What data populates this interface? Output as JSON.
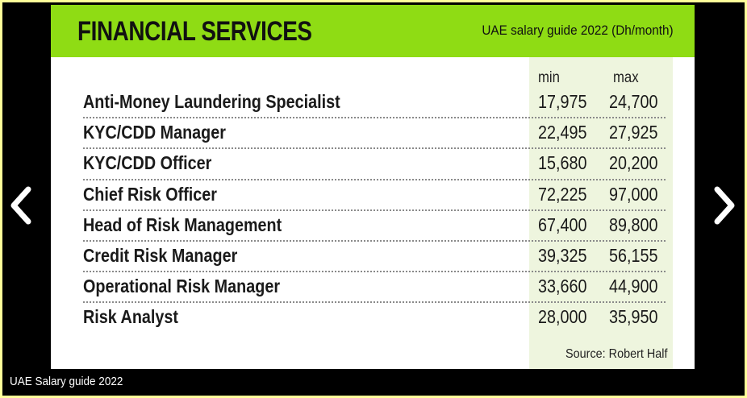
{
  "card": {
    "title": "FINANCIAL SERVICES",
    "subtitle": "UAE salary guide 2022 (Dh/month)",
    "columns": {
      "min": "min",
      "max": "max"
    },
    "rows": [
      {
        "job": "Anti-Money Laundering Specialist",
        "min": "17,975",
        "max": "24,700"
      },
      {
        "job": "KYC/CDD Manager",
        "min": "22,495",
        "max": "27,925"
      },
      {
        "job": "KYC/CDD Officer",
        "min": "15,680",
        "max": "20,200"
      },
      {
        "job": "Chief Risk Officer",
        "min": "72,225",
        "max": "97,000"
      },
      {
        "job": "Head of Risk Management",
        "min": "67,400",
        "max": "89,800"
      },
      {
        "job": "Credit Risk Manager",
        "min": "39,325",
        "max": "56,155"
      },
      {
        "job": "Operational Risk Manager",
        "min": "33,660",
        "max": "44,900"
      },
      {
        "job": "Risk Analyst",
        "min": "28,000",
        "max": "35,950"
      }
    ],
    "source": "Source: Robert Half"
  },
  "viewer": {
    "caption": "UAE Salary guide 2022",
    "prev_icon": "chevron-left-icon",
    "next_icon": "chevron-right-icon"
  },
  "colors": {
    "banner": "#8fdc14",
    "number_column": "#eef5de",
    "viewer_bg": "#000000",
    "page_border": "#ffff99"
  }
}
